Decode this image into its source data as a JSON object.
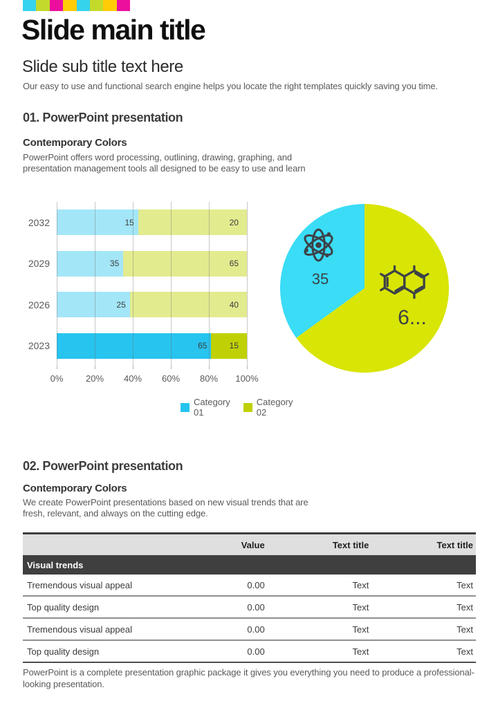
{
  "page": {
    "background": "#ffffff"
  },
  "header": {
    "stripe_colors": [
      "#35d3ee",
      "#c3da2b",
      "#ec0f9e",
      "#ffcc05",
      "#35d3ee",
      "#c3da2b",
      "#ffcc05",
      "#ec0f9e"
    ],
    "title": "Slide main title",
    "subtitle": "Slide sub title text here",
    "description": "Our easy to use and functional search engine  helps you locate the right templates quickly saving you time."
  },
  "section1": {
    "heading": "01. PowerPoint presentation",
    "subheading": "Contemporary Colors",
    "body": "PowerPoint offers word processing, outlining, drawing, graphing, and presentation management tools all designed to be easy to use and learn"
  },
  "chart_data": [
    {
      "type": "bar",
      "subtype": "horizontal-100pct-stacked",
      "title": "",
      "categories": [
        "2032",
        "2029",
        "2026",
        "2023"
      ],
      "series": [
        {
          "name": "Category 01",
          "values": [
            15,
            35,
            25,
            65
          ],
          "color": "#27c4ef",
          "muted_color": "#a3e6f8"
        },
        {
          "name": "Category 02",
          "values": [
            20,
            65,
            40,
            15
          ],
          "color": "#bfd104",
          "muted_color": "#e3eb8f"
        }
      ],
      "highlight_category": "2023",
      "x_ticks": [
        "0%",
        "20%",
        "40%",
        "60%",
        "80%",
        "100%"
      ],
      "xlim": [
        0,
        100
      ],
      "grid": "vertical",
      "legend": [
        "Category 01",
        "Category 02"
      ],
      "legend_position": "bottom"
    },
    {
      "type": "pie",
      "start": "top",
      "direction": "counterclockwise",
      "slices": [
        {
          "name": "Category 01",
          "value": 35,
          "label": "35",
          "color": "#3adcf6",
          "icon": "atom-icon"
        },
        {
          "name": "Category 02",
          "value": 65,
          "label": "6...",
          "color": "#d9e504",
          "icon": "molecule-icon"
        }
      ]
    }
  ],
  "section2": {
    "heading": "02. PowerPoint presentation",
    "subheading": "Contemporary Colors",
    "body": "We create PowerPoint presentations based on new visual trends that are fresh, relevant, and always on the cutting edge."
  },
  "table": {
    "columns": [
      "",
      "Value",
      "Text title",
      "Text title"
    ],
    "group_header": "Visual trends",
    "rows": [
      [
        "Tremendous visual appeal",
        "0.00",
        "Text",
        "Text"
      ],
      [
        "Top quality design",
        "0.00",
        "Text",
        "Text"
      ],
      [
        "Tremendous visual appeal",
        "0.00",
        "Text",
        "Text"
      ],
      [
        "Top quality design",
        "0.00",
        "Text",
        "Text"
      ]
    ]
  },
  "footer": {
    "text": "PowerPoint is a complete presentation graphic package it gives you everything you need to produce a professional-looking presentation."
  }
}
